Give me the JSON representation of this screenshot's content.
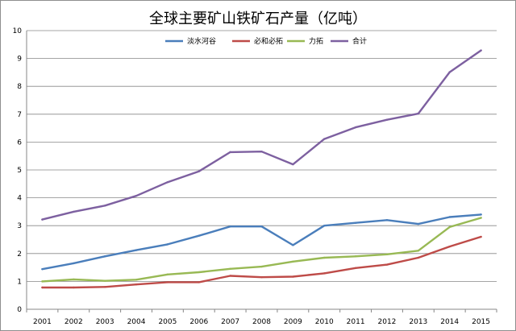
{
  "chart_data": {
    "type": "line",
    "title": "全球主要矿山铁矿石产量（亿吨）",
    "xlabel": "",
    "ylabel": "",
    "categories": [
      "2001",
      "2002",
      "2003",
      "2004",
      "2005",
      "2006",
      "2007",
      "2008",
      "2009",
      "2010",
      "2011",
      "2012",
      "2013",
      "2014",
      "2015"
    ],
    "ylim": [
      0,
      10
    ],
    "yticks": [
      0,
      1,
      2,
      3,
      4,
      5,
      6,
      7,
      8,
      9,
      10
    ],
    "grid": true,
    "legend_position": "top",
    "series": [
      {
        "name": "淡水河谷",
        "color": "#4a7ebb",
        "values": [
          1.44,
          1.65,
          1.9,
          2.12,
          2.33,
          2.64,
          2.97,
          2.97,
          2.3,
          3.0,
          3.1,
          3.2,
          3.06,
          3.31,
          3.4
        ]
      },
      {
        "name": "必和必拓",
        "color": "#be4b48",
        "values": [
          0.78,
          0.78,
          0.8,
          0.89,
          0.97,
          0.97,
          1.2,
          1.15,
          1.17,
          1.29,
          1.48,
          1.6,
          1.85,
          2.25,
          2.6
        ]
      },
      {
        "name": "力拓",
        "color": "#98b954",
        "values": [
          1.0,
          1.07,
          1.02,
          1.06,
          1.25,
          1.33,
          1.45,
          1.53,
          1.71,
          1.85,
          1.9,
          1.97,
          2.1,
          2.95,
          3.28
        ]
      },
      {
        "name": "合计",
        "color": "#7d60a0",
        "values": [
          3.22,
          3.5,
          3.72,
          4.07,
          4.56,
          4.95,
          5.64,
          5.66,
          5.2,
          6.11,
          6.53,
          6.8,
          7.02,
          8.51,
          9.29
        ]
      }
    ]
  }
}
